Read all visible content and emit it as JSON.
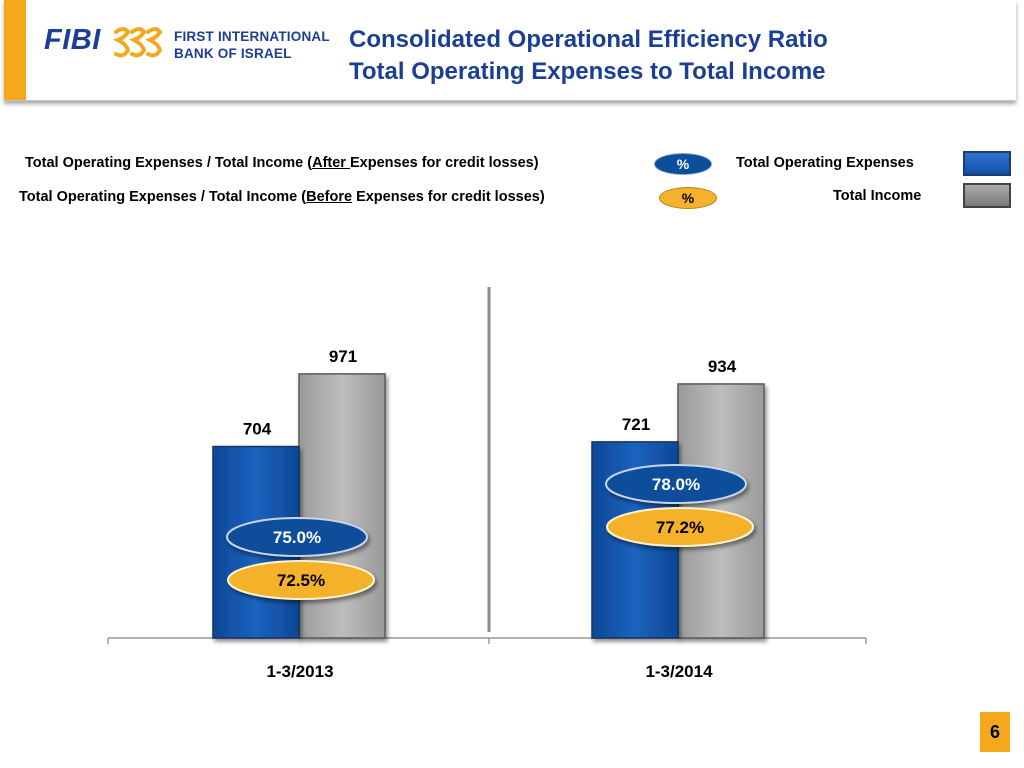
{
  "header": {
    "logo_text": "FIBI",
    "bank_name_line1": "FIRST INTERNATIONAL",
    "bank_name_line2": "BANK OF ISRAEL",
    "title_line1": "Consolidated Operational Efficiency Ratio",
    "title_line2": "Total Operating Expenses to Total Income"
  },
  "legend": {
    "after_prefix": "Total Operating Expenses / Total Income (",
    "after_underlined": "After ",
    "after_suffix": "Expenses for credit losses)",
    "after_pill": "%",
    "before_prefix": "Total Operating Expenses / Total Income (",
    "before_underlined": "Before",
    "before_suffix": " Expenses for credit losses)",
    "before_pill": "%",
    "expenses_label": "Total Operating Expenses",
    "income_label": "Total Income"
  },
  "colors": {
    "expenses": "#1757b0",
    "income": "#a9a9a9",
    "ratio_after": "#0b4e99",
    "ratio_before": "#f4b12c",
    "accent": "#f5a81c",
    "title": "#1c3f94"
  },
  "chart_data": {
    "type": "bar",
    "categories": [
      "1-3/2013",
      "1-3/2014"
    ],
    "series": [
      {
        "name": "Total Operating Expenses",
        "values": [
          704,
          721
        ]
      },
      {
        "name": "Total Income",
        "values": [
          971,
          934
        ]
      }
    ],
    "ratios_after_credit_losses": [
      "75.0%",
      "78.0%"
    ],
    "ratios_before_credit_losses": [
      "72.5%",
      "77.2%"
    ],
    "ylim": [
      0,
      1250
    ]
  },
  "page_number": "6"
}
